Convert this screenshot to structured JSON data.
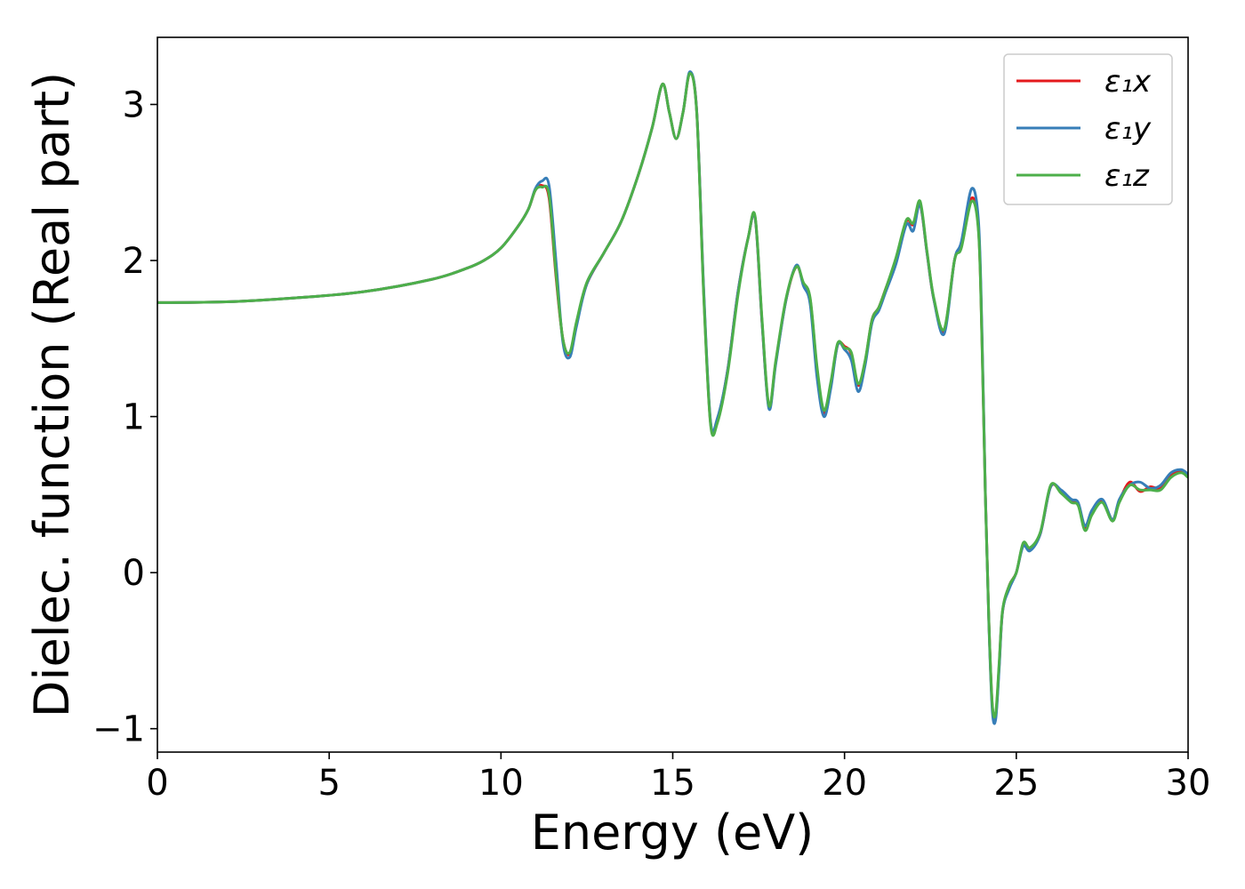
{
  "chart_data": {
    "type": "line",
    "xlabel": "Energy (eV)",
    "ylabel": "Dielec. function (Real part)",
    "xlim": [
      0,
      30
    ],
    "ylim": [
      -1.15,
      3.43
    ],
    "xticks": [
      0,
      5,
      10,
      15,
      20,
      25,
      30
    ],
    "yticks": [
      -1,
      0,
      1,
      2,
      3
    ],
    "grid": false,
    "legend_position": "top-right",
    "series": [
      {
        "name": "ε₁x",
        "color": "#e41a1c",
        "x": [
          0,
          2,
          4,
          6,
          8,
          9,
          9.5,
          10,
          10.5,
          10.8,
          11.0,
          11.2,
          11.4,
          11.6,
          11.8,
          12.0,
          12.2,
          12.5,
          13.0,
          13.5,
          14.0,
          14.4,
          14.7,
          14.9,
          15.1,
          15.3,
          15.5,
          15.7,
          15.9,
          16.1,
          16.3,
          16.6,
          16.9,
          17.2,
          17.4,
          17.6,
          17.8,
          18.0,
          18.3,
          18.6,
          18.8,
          19.0,
          19.2,
          19.4,
          19.6,
          19.8,
          20.0,
          20.2,
          20.4,
          20.6,
          20.8,
          21.0,
          21.2,
          21.5,
          21.8,
          22.0,
          22.2,
          22.4,
          22.6,
          22.9,
          23.2,
          23.4,
          23.7,
          23.9,
          24.0,
          24.1,
          24.2,
          24.3,
          24.4,
          24.5,
          24.6,
          24.8,
          25.0,
          25.2,
          25.4,
          25.7,
          26.0,
          26.3,
          26.6,
          26.8,
          27.0,
          27.2,
          27.5,
          27.8,
          28.0,
          28.3,
          28.6,
          28.9,
          29.2,
          29.5,
          29.8,
          30.0
        ],
        "y": [
          1.73,
          1.735,
          1.76,
          1.8,
          1.88,
          1.95,
          2.0,
          2.08,
          2.22,
          2.33,
          2.45,
          2.48,
          2.4,
          1.9,
          1.5,
          1.4,
          1.6,
          1.85,
          2.05,
          2.25,
          2.55,
          2.85,
          3.13,
          2.95,
          2.78,
          2.95,
          3.2,
          2.95,
          1.8,
          0.96,
          0.98,
          1.3,
          1.8,
          2.15,
          2.27,
          1.6,
          1.06,
          1.35,
          1.75,
          1.96,
          1.85,
          1.75,
          1.3,
          1.02,
          1.2,
          1.46,
          1.45,
          1.4,
          1.2,
          1.35,
          1.62,
          1.7,
          1.82,
          2.0,
          2.25,
          2.23,
          2.36,
          2.05,
          1.75,
          1.55,
          2.0,
          2.1,
          2.4,
          2.2,
          1.5,
          0.5,
          -0.3,
          -0.85,
          -0.92,
          -0.6,
          -0.25,
          -0.08,
          0.0,
          0.18,
          0.15,
          0.25,
          0.55,
          0.52,
          0.46,
          0.44,
          0.28,
          0.38,
          0.46,
          0.34,
          0.46,
          0.58,
          0.52,
          0.55,
          0.54,
          0.62,
          0.65,
          0.62
        ]
      },
      {
        "name": "ε₁y",
        "color": "#377eb8",
        "x": [
          0,
          2,
          4,
          6,
          8,
          9,
          9.5,
          10,
          10.5,
          10.8,
          11.0,
          11.2,
          11.4,
          11.6,
          11.8,
          12.0,
          12.2,
          12.5,
          13.0,
          13.5,
          14.0,
          14.4,
          14.7,
          14.9,
          15.1,
          15.3,
          15.5,
          15.7,
          15.9,
          16.1,
          16.3,
          16.6,
          16.9,
          17.2,
          17.4,
          17.6,
          17.8,
          18.0,
          18.3,
          18.6,
          18.8,
          19.0,
          19.2,
          19.4,
          19.6,
          19.8,
          20.0,
          20.2,
          20.4,
          20.6,
          20.8,
          21.0,
          21.2,
          21.5,
          21.8,
          22.0,
          22.2,
          22.4,
          22.6,
          22.9,
          23.2,
          23.4,
          23.7,
          23.9,
          24.0,
          24.1,
          24.2,
          24.3,
          24.4,
          24.5,
          24.6,
          24.8,
          25.0,
          25.2,
          25.4,
          25.7,
          26.0,
          26.3,
          26.6,
          26.8,
          27.0,
          27.2,
          27.5,
          27.8,
          28.0,
          28.3,
          28.6,
          28.9,
          29.2,
          29.5,
          29.8,
          30.0
        ],
        "y": [
          1.73,
          1.735,
          1.76,
          1.8,
          1.88,
          1.95,
          2.0,
          2.08,
          2.22,
          2.33,
          2.46,
          2.51,
          2.48,
          2.0,
          1.48,
          1.38,
          1.58,
          1.85,
          2.05,
          2.25,
          2.55,
          2.85,
          3.13,
          2.95,
          2.78,
          2.95,
          3.21,
          2.95,
          1.82,
          0.97,
          0.99,
          1.3,
          1.8,
          2.15,
          2.27,
          1.6,
          1.05,
          1.34,
          1.75,
          1.97,
          1.84,
          1.72,
          1.25,
          1.0,
          1.18,
          1.46,
          1.43,
          1.36,
          1.16,
          1.33,
          1.6,
          1.68,
          1.8,
          1.98,
          2.23,
          2.19,
          2.36,
          2.05,
          1.75,
          1.53,
          2.0,
          2.12,
          2.46,
          2.25,
          1.55,
          0.5,
          -0.32,
          -0.88,
          -0.94,
          -0.62,
          -0.25,
          -0.1,
          0.0,
          0.17,
          0.14,
          0.25,
          0.55,
          0.53,
          0.47,
          0.45,
          0.3,
          0.4,
          0.47,
          0.34,
          0.47,
          0.56,
          0.58,
          0.54,
          0.56,
          0.64,
          0.66,
          0.63
        ]
      },
      {
        "name": "ε₁z",
        "color": "#4daf4a",
        "x": [
          0,
          2,
          4,
          6,
          8,
          9,
          9.5,
          10,
          10.5,
          10.8,
          11.0,
          11.2,
          11.4,
          11.6,
          11.8,
          12.0,
          12.2,
          12.5,
          13.0,
          13.5,
          14.0,
          14.4,
          14.7,
          14.9,
          15.1,
          15.3,
          15.5,
          15.7,
          15.9,
          16.1,
          16.3,
          16.6,
          16.9,
          17.2,
          17.4,
          17.6,
          17.8,
          18.0,
          18.3,
          18.6,
          18.8,
          19.0,
          19.2,
          19.4,
          19.6,
          19.8,
          20.0,
          20.2,
          20.4,
          20.6,
          20.8,
          21.0,
          21.2,
          21.5,
          21.8,
          22.0,
          22.2,
          22.4,
          22.6,
          22.9,
          23.2,
          23.4,
          23.7,
          23.9,
          24.0,
          24.1,
          24.2,
          24.3,
          24.4,
          24.5,
          24.6,
          24.8,
          25.0,
          25.2,
          25.4,
          25.7,
          26.0,
          26.3,
          26.6,
          26.8,
          27.0,
          27.2,
          27.5,
          27.8,
          28.0,
          28.3,
          28.6,
          28.9,
          29.2,
          29.5,
          29.8,
          30.0
        ],
        "y": [
          1.73,
          1.735,
          1.76,
          1.8,
          1.88,
          1.95,
          2.0,
          2.08,
          2.22,
          2.33,
          2.45,
          2.47,
          2.42,
          1.92,
          1.5,
          1.41,
          1.61,
          1.86,
          2.05,
          2.25,
          2.55,
          2.85,
          3.13,
          2.95,
          2.78,
          2.95,
          3.2,
          2.94,
          1.78,
          0.95,
          0.96,
          1.28,
          1.78,
          2.15,
          2.28,
          1.62,
          1.07,
          1.36,
          1.76,
          1.96,
          1.86,
          1.76,
          1.32,
          1.04,
          1.22,
          1.47,
          1.44,
          1.41,
          1.21,
          1.36,
          1.62,
          1.7,
          1.82,
          2.02,
          2.26,
          2.24,
          2.38,
          2.06,
          1.76,
          1.56,
          2.0,
          2.08,
          2.38,
          2.18,
          1.48,
          0.48,
          -0.3,
          -0.84,
          -0.9,
          -0.58,
          -0.24,
          -0.08,
          0.0,
          0.19,
          0.16,
          0.26,
          0.56,
          0.51,
          0.45,
          0.43,
          0.27,
          0.37,
          0.45,
          0.33,
          0.45,
          0.56,
          0.53,
          0.53,
          0.53,
          0.61,
          0.64,
          0.61
        ]
      }
    ]
  }
}
